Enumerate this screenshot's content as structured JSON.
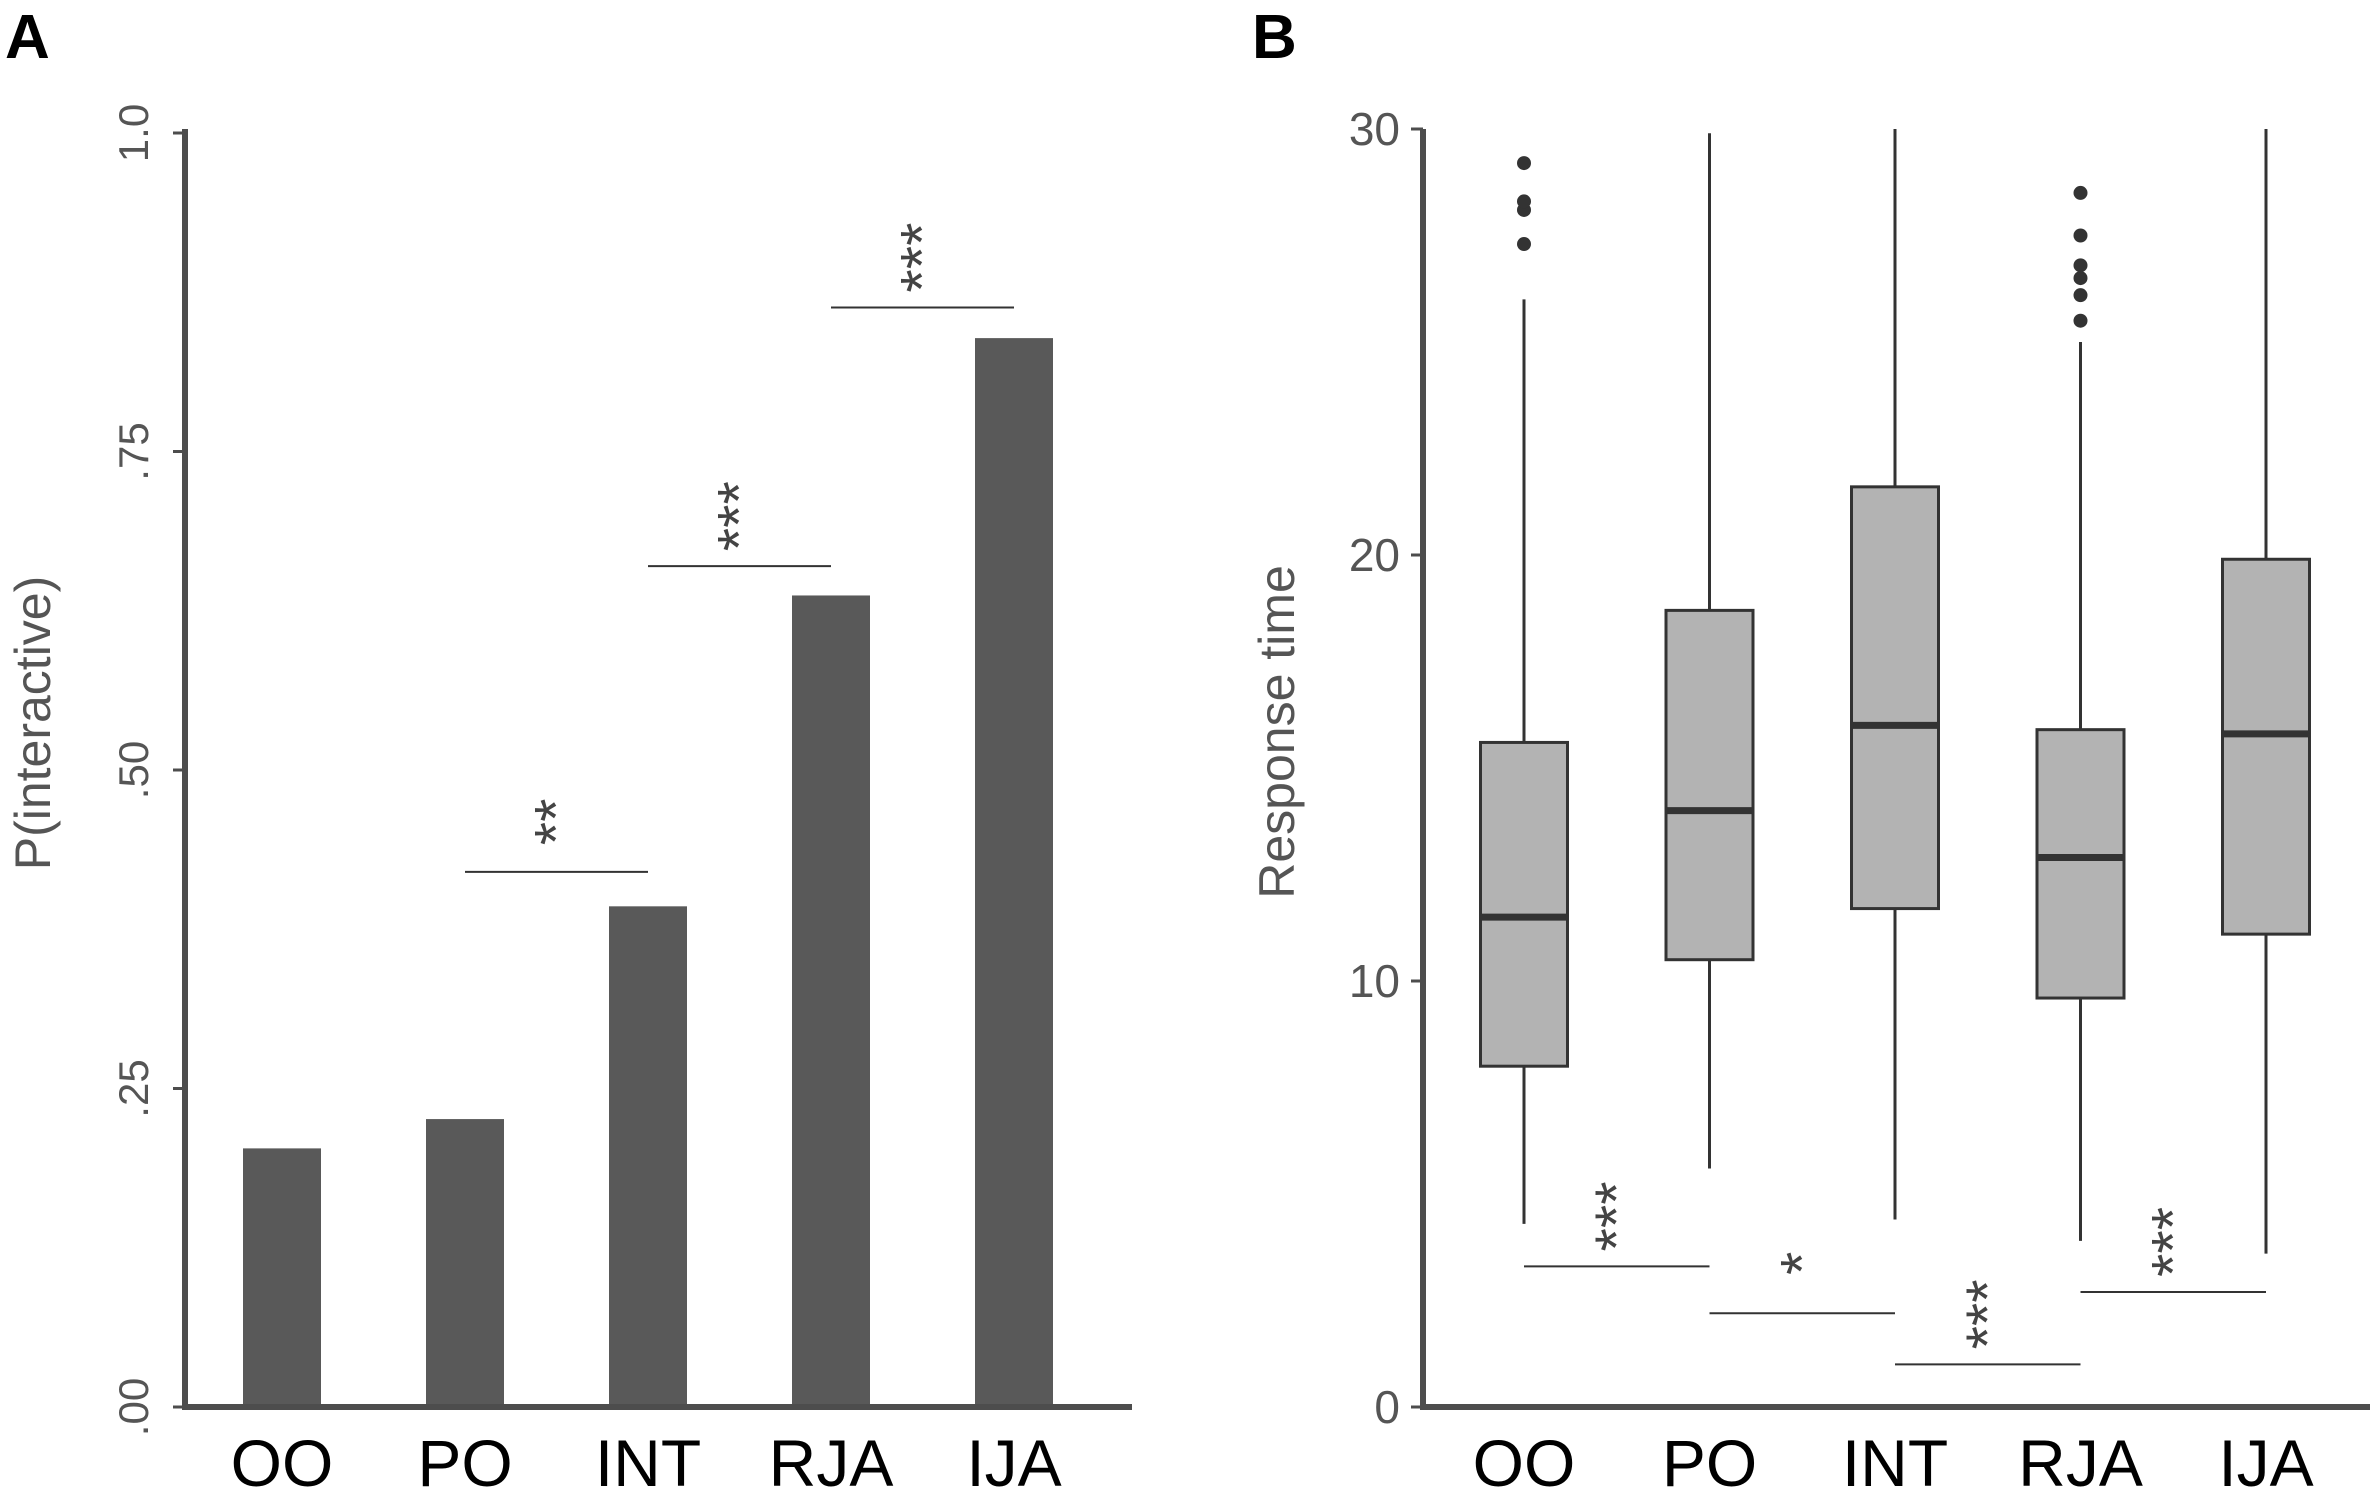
{
  "colors": {
    "bar": "#595959",
    "box_fill": "#b3b3b3",
    "axis": "#4d4d4d",
    "line": "#333333",
    "text_dark": "#000000",
    "text_tick": "#555555"
  },
  "chart_data": [
    {
      "panel": "A",
      "type": "bar",
      "title": "",
      "xlabel": "",
      "ylabel": "P(interactive)",
      "ylim": [
        0,
        1
      ],
      "yticks": [
        0,
        0.25,
        0.5,
        0.75,
        1.0
      ],
      "ytick_labels": [
        ".00",
        ".25",
        ".50",
        ".75",
        "1.0"
      ],
      "categories": [
        "OO",
        "PO",
        "INT",
        "RJA",
        "IJA"
      ],
      "values": [
        0.203,
        0.226,
        0.393,
        0.637,
        0.839
      ],
      "grid": false,
      "significance": [
        {
          "from": "PO",
          "to": "INT",
          "label": "**",
          "y": 0.42
        },
        {
          "from": "INT",
          "to": "RJA",
          "label": "***",
          "y": 0.66
        },
        {
          "from": "RJA",
          "to": "IJA",
          "label": "***",
          "y": 0.863
        }
      ]
    },
    {
      "panel": "B",
      "type": "box",
      "title": "",
      "xlabel": "",
      "ylabel": "Response time",
      "ylim": [
        0,
        30
      ],
      "yticks": [
        0,
        10,
        20,
        30
      ],
      "ytick_labels": [
        "0",
        "10",
        "20",
        "30"
      ],
      "categories": [
        "OO",
        "PO",
        "INT",
        "RJA",
        "IJA"
      ],
      "boxes": [
        {
          "whisker_low": 4.3,
          "q1": 8.0,
          "median": 11.5,
          "q3": 15.6,
          "whisker_high": 26.0,
          "outliers": [
            27.3,
            28.1,
            28.3,
            29.2
          ]
        },
        {
          "whisker_low": 5.6,
          "q1": 10.5,
          "median": 14.0,
          "q3": 18.7,
          "whisker_high": 29.9,
          "outliers": []
        },
        {
          "whisker_low": 4.4,
          "q1": 11.7,
          "median": 16.0,
          "q3": 21.6,
          "whisker_high": 30.0,
          "outliers": []
        },
        {
          "whisker_low": 3.9,
          "q1": 9.6,
          "median": 12.9,
          "q3": 15.9,
          "whisker_high": 25.0,
          "outliers": [
            25.5,
            26.1,
            26.5,
            26.8,
            27.5,
            28.5
          ]
        },
        {
          "whisker_low": 3.6,
          "q1": 11.1,
          "median": 15.8,
          "q3": 19.9,
          "whisker_high": 30.0,
          "outliers": []
        }
      ],
      "grid": false,
      "significance": [
        {
          "from": "OO",
          "to": "PO",
          "label": "***",
          "y": 3.3
        },
        {
          "from": "PO",
          "to": "INT",
          "label": "*",
          "y": 2.2
        },
        {
          "from": "INT",
          "to": "RJA",
          "label": "***",
          "y": 1.0
        },
        {
          "from": "RJA",
          "to": "IJA",
          "label": "***",
          "y": 2.7
        }
      ]
    }
  ]
}
